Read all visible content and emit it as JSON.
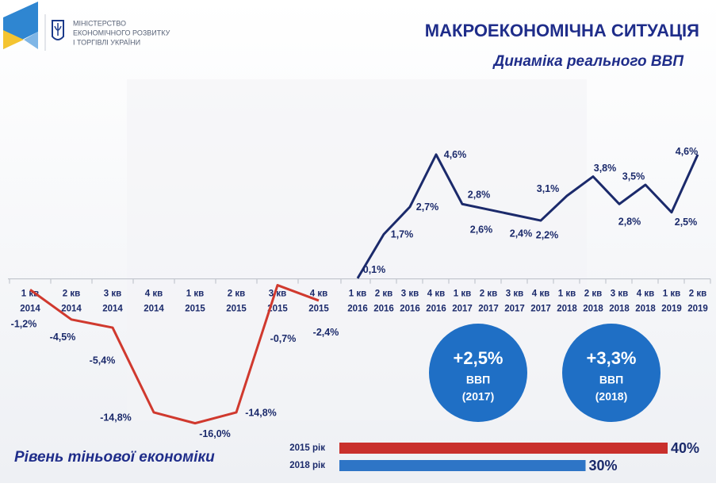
{
  "header": {
    "ministry": [
      "МІНІСТЕРСТВО",
      "ЕКОНОМІЧНОГО РОЗВИТКУ",
      "І ТОРГІВЛІ УКРАЇНИ"
    ],
    "title": "МАКРОЕКОНОМІЧНА СИТУАЦІЯ"
  },
  "chart_data": [
    {
      "type": "line",
      "title": "Динаміка реального ВВП",
      "categories": [
        [
          "1 кв",
          "2014"
        ],
        [
          "2 кв",
          "2014"
        ],
        [
          "3 кв",
          "2014"
        ],
        [
          "4 кв",
          "2014"
        ],
        [
          "1 кв",
          "2015"
        ],
        [
          "2 кв",
          "2015"
        ],
        [
          "3 кв",
          "2015"
        ],
        [
          "4 кв",
          "2015"
        ],
        [
          "1 кв",
          "2016"
        ],
        [
          "2 кв",
          "2016"
        ],
        [
          "3 кв",
          "2016"
        ],
        [
          "4 кв",
          "2016"
        ],
        [
          "1 кв",
          "2017"
        ],
        [
          "2 кв",
          "2017"
        ],
        [
          "3 кв",
          "2017"
        ],
        [
          "4 кв",
          "2017"
        ],
        [
          "1 кв",
          "2018"
        ],
        [
          "2 кв",
          "2018"
        ],
        [
          "3 кв",
          "2018"
        ],
        [
          "4 кв",
          "2018"
        ],
        [
          "1 кв",
          "2019"
        ],
        [
          "2 кв",
          "2019"
        ]
      ],
      "series": [
        {
          "color": "#d0392e",
          "axis": "y",
          "values": [
            -1.2,
            -4.5,
            -5.4,
            -14.8,
            -16.0,
            -14.8,
            -0.7,
            -2.4,
            null,
            null,
            null,
            null,
            null,
            null,
            null,
            null,
            null,
            null,
            null,
            null,
            null,
            null
          ],
          "value_labels": [
            "-1,2%",
            "-4,5%",
            "-5,4%",
            "-14,8%",
            "-16,0%",
            "-14,8%",
            "-0,7%",
            "-2,4%",
            null,
            null,
            null,
            null,
            null,
            null,
            null,
            null,
            null,
            null,
            null,
            null,
            null,
            null
          ]
        },
        {
          "color": "#1b2a6b",
          "axis": "y2",
          "values": [
            null,
            null,
            null,
            null,
            null,
            null,
            null,
            null,
            0.1,
            1.7,
            2.7,
            4.6,
            2.8,
            2.6,
            2.4,
            2.2,
            3.1,
            3.8,
            2.8,
            3.5,
            2.5,
            4.6
          ],
          "value_labels": [
            null,
            null,
            null,
            null,
            null,
            null,
            null,
            null,
            "0,1%",
            "1,7%",
            "2,7%",
            "4,6%",
            "2,8%",
            "2,6%",
            "2,4%",
            "2,2%",
            "3,1%",
            "3,8%",
            "2,8%",
            "3,5%",
            "2,5%",
            "4,6%"
          ]
        }
      ],
      "ylim": [
        -17,
        15
      ],
      "y2lim": [
        -5.5,
        5
      ],
      "badges": [
        [
          "+2,5%",
          "ВВП",
          "(2017)"
        ],
        [
          "+3,3%",
          "ВВП",
          "(2018)"
        ]
      ]
    },
    {
      "type": "hbar",
      "title": "Рівень тіньової економіки",
      "categories": [
        "2015 рік",
        "2018 рік"
      ],
      "values": [
        40,
        30
      ],
      "value_labels": [
        "40%",
        "30%"
      ],
      "colors": [
        "#c9302c",
        "#2e75c6"
      ],
      "xlim": [
        0,
        40
      ]
    }
  ]
}
